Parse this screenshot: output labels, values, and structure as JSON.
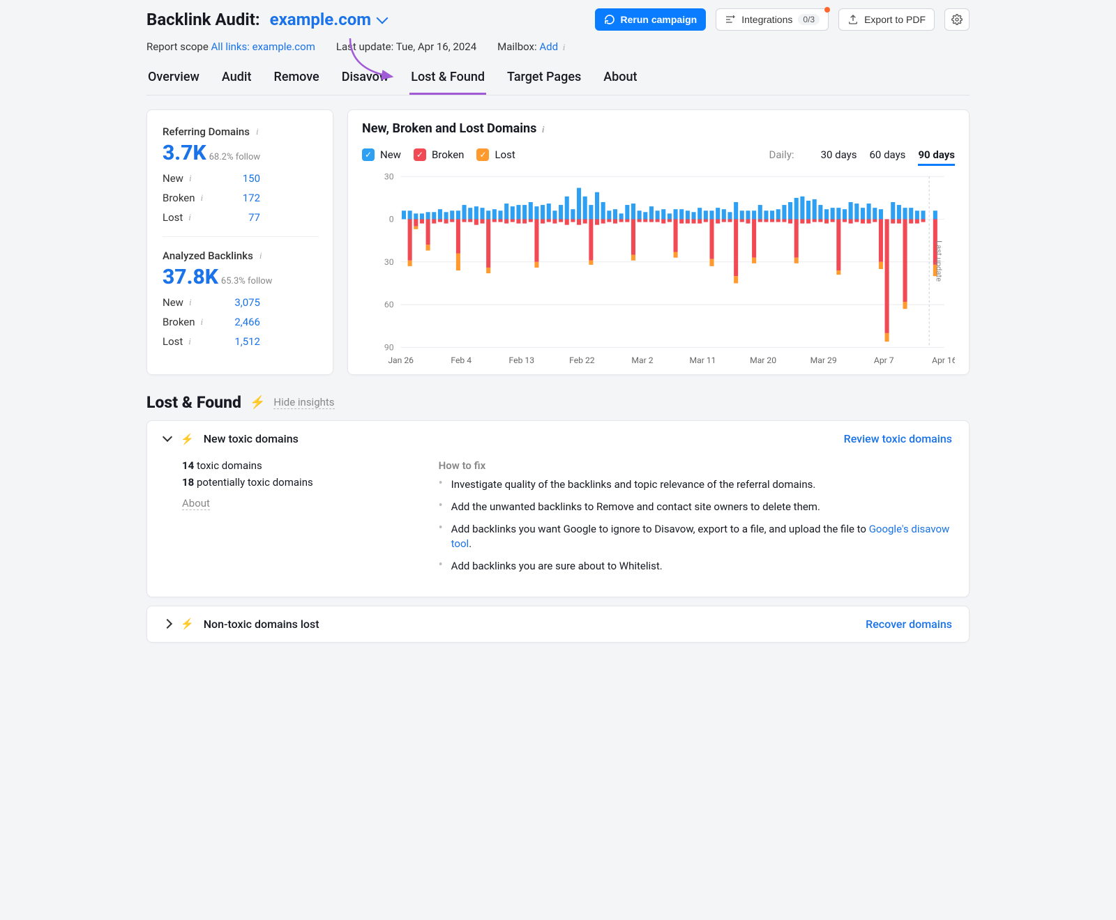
{
  "header": {
    "title_prefix": "Backlink Audit:",
    "domain": "example.com",
    "rerun_label": "Rerun campaign",
    "integrations_label": "Integrations",
    "integrations_badge": "0/3",
    "export_label": "Export to PDF"
  },
  "meta": {
    "scope_label": "Report scope",
    "scope_links": "All links:",
    "scope_domain": "example.com",
    "last_update_label": "Last update:",
    "last_update_value": "Tue, Apr 16, 2024",
    "mailbox_label": "Mailbox:",
    "mailbox_add": "Add"
  },
  "tabs": [
    "Overview",
    "Audit",
    "Remove",
    "Disavow",
    "Lost & Found",
    "Target Pages",
    "About"
  ],
  "active_tab": 4,
  "sidebar": {
    "ref_title": "Referring Domains",
    "ref_value": "3.7K",
    "ref_follow": "68.2% follow",
    "ref_rows": [
      {
        "label": "New",
        "value": "150"
      },
      {
        "label": "Broken",
        "value": "172"
      },
      {
        "label": "Lost",
        "value": "77"
      }
    ],
    "bl_title": "Analyzed Backlinks",
    "bl_value": "37.8K",
    "bl_follow": "65.3% follow",
    "bl_rows": [
      {
        "label": "New",
        "value": "3,075"
      },
      {
        "label": "Broken",
        "value": "2,466"
      },
      {
        "label": "Lost",
        "value": "1,512"
      }
    ]
  },
  "chart": {
    "title": "New, Broken and Lost Domains",
    "legend": {
      "new": "New",
      "broken": "Broken",
      "lost": "Lost"
    },
    "colors": {
      "new": "#2ea0f4",
      "broken": "#f24a55",
      "lost": "#ff9a2e",
      "grid": "#ececf1",
      "bg": "#ffffff"
    },
    "period_label": "Daily:",
    "periods": [
      "30 days",
      "60 days",
      "90 days"
    ],
    "period_selected": 2,
    "yticks": [
      30,
      0,
      30,
      60,
      90
    ],
    "xlabels": [
      "Jan 26",
      "Feb 4",
      "Feb 13",
      "Feb 22",
      "Mar 2",
      "Mar 11",
      "Mar 20",
      "Mar 29",
      "Apr 7",
      "Apr 16"
    ],
    "last_update_label": "Last update",
    "bars": [
      {
        "n": 6,
        "b": 0,
        "l": 0
      },
      {
        "n": 6,
        "b": 29,
        "l": 4
      },
      {
        "n": 4,
        "b": 5,
        "l": 2
      },
      {
        "n": 4,
        "b": 3,
        "l": 0
      },
      {
        "n": 5,
        "b": 18,
        "l": 4
      },
      {
        "n": 5,
        "b": 3,
        "l": 0
      },
      {
        "n": 7,
        "b": 2,
        "l": 0
      },
      {
        "n": 5,
        "b": 3,
        "l": 0
      },
      {
        "n": 6,
        "b": 2,
        "l": 0
      },
      {
        "n": 6,
        "b": 24,
        "l": 12
      },
      {
        "n": 10,
        "b": 2,
        "l": 0
      },
      {
        "n": 8,
        "b": 2,
        "l": 0
      },
      {
        "n": 9,
        "b": 4,
        "l": 0
      },
      {
        "n": 8,
        "b": 3,
        "l": 0
      },
      {
        "n": 6,
        "b": 34,
        "l": 4
      },
      {
        "n": 7,
        "b": 2,
        "l": 0
      },
      {
        "n": 6,
        "b": 2,
        "l": 0
      },
      {
        "n": 11,
        "b": 3,
        "l": 0
      },
      {
        "n": 9,
        "b": 2,
        "l": 0
      },
      {
        "n": 10,
        "b": 3,
        "l": 0
      },
      {
        "n": 10,
        "b": 3,
        "l": 0
      },
      {
        "n": 12,
        "b": 2,
        "l": 0
      },
      {
        "n": 9,
        "b": 30,
        "l": 4
      },
      {
        "n": 10,
        "b": 3,
        "l": 0
      },
      {
        "n": 11,
        "b": 2,
        "l": 0
      },
      {
        "n": 6,
        "b": 3,
        "l": 0
      },
      {
        "n": 10,
        "b": 2,
        "l": 0
      },
      {
        "n": 16,
        "b": 4,
        "l": 0
      },
      {
        "n": 7,
        "b": 2,
        "l": 0
      },
      {
        "n": 22,
        "b": 4,
        "l": 0
      },
      {
        "n": 16,
        "b": 3,
        "l": 0
      },
      {
        "n": 10,
        "b": 29,
        "l": 3
      },
      {
        "n": 19,
        "b": 4,
        "l": 0
      },
      {
        "n": 12,
        "b": 3,
        "l": 0
      },
      {
        "n": 6,
        "b": 2,
        "l": 0
      },
      {
        "n": 7,
        "b": 3,
        "l": 0
      },
      {
        "n": 4,
        "b": 2,
        "l": 0
      },
      {
        "n": 10,
        "b": 2,
        "l": 0
      },
      {
        "n": 11,
        "b": 25,
        "l": 4
      },
      {
        "n": 6,
        "b": 2,
        "l": 0
      },
      {
        "n": 5,
        "b": 2,
        "l": 0
      },
      {
        "n": 9,
        "b": 2,
        "l": 0
      },
      {
        "n": 6,
        "b": 2,
        "l": 0
      },
      {
        "n": 7,
        "b": 3,
        "l": 0
      },
      {
        "n": 4,
        "b": 2,
        "l": 0
      },
      {
        "n": 7,
        "b": 23,
        "l": 4
      },
      {
        "n": 7,
        "b": 3,
        "l": 0
      },
      {
        "n": 6,
        "b": 3,
        "l": 0
      },
      {
        "n": 5,
        "b": 3,
        "l": 0
      },
      {
        "n": 8,
        "b": 3,
        "l": 0
      },
      {
        "n": 6,
        "b": 2,
        "l": 0
      },
      {
        "n": 6,
        "b": 28,
        "l": 5
      },
      {
        "n": 8,
        "b": 3,
        "l": 0
      },
      {
        "n": 7,
        "b": 2,
        "l": 0
      },
      {
        "n": 5,
        "b": 2,
        "l": 0
      },
      {
        "n": 12,
        "b": 40,
        "l": 5
      },
      {
        "n": 6,
        "b": 2,
        "l": 0
      },
      {
        "n": 6,
        "b": 3,
        "l": 0
      },
      {
        "n": 6,
        "b": 27,
        "l": 4
      },
      {
        "n": 10,
        "b": 2,
        "l": 0
      },
      {
        "n": 6,
        "b": 2,
        "l": 0
      },
      {
        "n": 6,
        "b": 2,
        "l": 0
      },
      {
        "n": 7,
        "b": 2,
        "l": 0
      },
      {
        "n": 10,
        "b": 2,
        "l": 0
      },
      {
        "n": 12,
        "b": 3,
        "l": 0
      },
      {
        "n": 15,
        "b": 27,
        "l": 4
      },
      {
        "n": 16,
        "b": 3,
        "l": 0
      },
      {
        "n": 13,
        "b": 3,
        "l": 0
      },
      {
        "n": 14,
        "b": 2,
        "l": 0
      },
      {
        "n": 10,
        "b": 2,
        "l": 0
      },
      {
        "n": 7,
        "b": 3,
        "l": 0
      },
      {
        "n": 8,
        "b": 2,
        "l": 0
      },
      {
        "n": 8,
        "b": 36,
        "l": 3
      },
      {
        "n": 7,
        "b": 2,
        "l": 0
      },
      {
        "n": 12,
        "b": 3,
        "l": 0
      },
      {
        "n": 11,
        "b": 2,
        "l": 0
      },
      {
        "n": 8,
        "b": 3,
        "l": 0
      },
      {
        "n": 11,
        "b": 3,
        "l": 0
      },
      {
        "n": 8,
        "b": 2,
        "l": 0
      },
      {
        "n": 7,
        "b": 30,
        "l": 5
      },
      {
        "n": 0,
        "b": 80,
        "l": 6
      },
      {
        "n": 12,
        "b": 3,
        "l": 0
      },
      {
        "n": 10,
        "b": 3,
        "l": 0
      },
      {
        "n": 8,
        "b": 58,
        "l": 5
      },
      {
        "n": 8,
        "b": 3,
        "l": 0
      },
      {
        "n": 6,
        "b": 3,
        "l": 0
      },
      {
        "n": 6,
        "b": 2,
        "l": 0
      },
      {
        "n": 0,
        "b": 0,
        "l": 0
      },
      {
        "n": 6,
        "b": 32,
        "l": 8
      },
      {
        "n": 0,
        "b": 0,
        "l": 0
      }
    ]
  },
  "section": {
    "title": "Lost & Found",
    "hide_label": "Hide insights"
  },
  "insight1": {
    "title": "New toxic domains",
    "action": "Review toxic domains",
    "toxic_count": "14",
    "toxic_label": "toxic domains",
    "pot_count": "18",
    "pot_label": "potentially toxic domains",
    "about": "About",
    "howto_title": "How to fix",
    "bullets": [
      "Investigate quality of the backlinks and topic relevance of the referral domains.",
      "Add the unwanted backlinks to Remove and contact site owners to delete them.",
      "Add backlinks you want Google to ignore to Disavow, export to a file, and upload the file to ",
      "Add backlinks you are sure about to Whitelist."
    ],
    "disavow_link_text": "Google's disavow tool"
  },
  "insight2": {
    "title": "Non-toxic domains lost",
    "action": "Recover domains"
  }
}
